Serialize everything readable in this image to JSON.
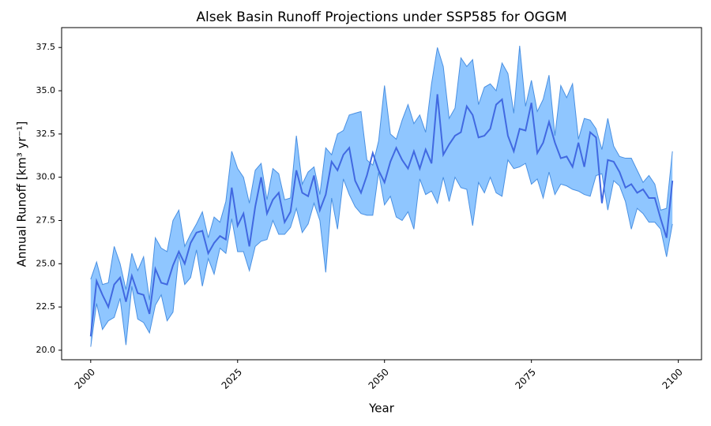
{
  "chart_data": {
    "type": "band-line",
    "title": "Alsek Basin Runoff Projections under SSP585 for OGGM",
    "x_label": "Year",
    "y_label": "Annual Runoff [km³ yr⁻¹]",
    "x": [
      2000,
      2001,
      2002,
      2003,
      2004,
      2005,
      2006,
      2007,
      2008,
      2009,
      2010,
      2011,
      2012,
      2013,
      2014,
      2015,
      2016,
      2017,
      2018,
      2019,
      2020,
      2021,
      2022,
      2023,
      2024,
      2025,
      2026,
      2027,
      2028,
      2029,
      2030,
      2031,
      2032,
      2033,
      2034,
      2035,
      2036,
      2037,
      2038,
      2039,
      2040,
      2041,
      2042,
      2043,
      2044,
      2045,
      2046,
      2047,
      2048,
      2049,
      2050,
      2051,
      2052,
      2053,
      2054,
      2055,
      2056,
      2057,
      2058,
      2059,
      2060,
      2061,
      2062,
      2063,
      2064,
      2065,
      2066,
      2067,
      2068,
      2069,
      2070,
      2071,
      2072,
      2073,
      2074,
      2075,
      2076,
      2077,
      2078,
      2079,
      2080,
      2081,
      2082,
      2083,
      2084,
      2085,
      2086,
      2087,
      2088,
      2089,
      2090,
      2091,
      2092,
      2093,
      2094,
      2095,
      2096,
      2097,
      2098,
      2099
    ],
    "series": [
      {
        "color": "#4169e1",
        "values": [
          20.8,
          24.0,
          23.2,
          22.5,
          23.8,
          24.2,
          22.8,
          24.3,
          23.3,
          23.2,
          22.1,
          24.7,
          23.9,
          23.8,
          24.9,
          25.7,
          25.0,
          26.2,
          26.8,
          26.9,
          25.6,
          26.2,
          26.6,
          26.4,
          29.4,
          27.2,
          27.9,
          26.0,
          28.3,
          30.0,
          27.9,
          28.7,
          29.1,
          27.4,
          28.0,
          30.4,
          29.1,
          28.9,
          30.1,
          28.1,
          29.0,
          30.9,
          30.4,
          31.3,
          31.7,
          29.8,
          29.1,
          30.1,
          31.4,
          30.4,
          29.7,
          30.9,
          31.7,
          31.0,
          30.5,
          31.5,
          30.5,
          31.6,
          30.8,
          34.8,
          31.3,
          31.9,
          32.4,
          32.6,
          34.1,
          33.6,
          32.3,
          32.4,
          32.8,
          34.2,
          34.5,
          32.4,
          31.5,
          32.8,
          32.7,
          34.3,
          31.4,
          32.0,
          33.2,
          32.0,
          31.1,
          31.2,
          30.6,
          32.0,
          30.6,
          32.6,
          32.3,
          28.5,
          31.0,
          30.9,
          30.3,
          29.4,
          29.6,
          29.1,
          29.3,
          28.8,
          28.8,
          27.6,
          26.5,
          29.8
        ]
      }
    ],
    "band": {
      "color": "#8fc6ff",
      "edge_color": "#4a90e2",
      "upper": [
        24.1,
        25.1,
        23.8,
        23.9,
        26.0,
        25.0,
        23.5,
        25.6,
        24.6,
        25.4,
        22.9,
        26.5,
        25.9,
        25.7,
        27.5,
        28.1,
        26.0,
        26.7,
        27.3,
        28.0,
        26.5,
        27.7,
        27.4,
        28.6,
        31.5,
        30.5,
        30.0,
        28.5,
        30.4,
        30.8,
        28.7,
        30.5,
        30.2,
        28.7,
        28.8,
        32.4,
        29.6,
        30.3,
        30.6,
        29.0,
        31.7,
        31.3,
        32.5,
        32.7,
        33.6,
        33.7,
        33.8,
        31.0,
        30.7,
        32.1,
        35.3,
        32.5,
        32.2,
        33.3,
        34.2,
        33.1,
        33.6,
        32.6,
        35.4,
        37.5,
        36.4,
        33.4,
        34.0,
        36.9,
        36.4,
        36.8,
        34.2,
        35.2,
        35.4,
        35.0,
        36.6,
        36.0,
        33.7,
        37.6,
        34.1,
        35.6,
        33.8,
        34.5,
        35.9,
        32.4,
        35.3,
        34.6,
        35.4,
        32.2,
        33.4,
        33.3,
        32.8,
        31.6,
        33.4,
        31.8,
        31.2,
        31.1,
        31.1,
        30.4,
        29.7,
        30.1,
        29.6,
        28.1,
        28.2,
        31.5
      ],
      "lower": [
        20.2,
        22.7,
        21.2,
        21.7,
        21.9,
        23.0,
        20.3,
        23.7,
        21.8,
        21.6,
        21.0,
        22.6,
        23.2,
        21.7,
        22.2,
        25.5,
        23.8,
        24.2,
        25.8,
        23.7,
        25.3,
        24.4,
        25.9,
        25.6,
        27.6,
        25.7,
        25.7,
        24.6,
        26.0,
        26.3,
        26.4,
        27.5,
        26.7,
        26.7,
        27.1,
        28.2,
        26.8,
        27.3,
        28.5,
        27.5,
        24.5,
        28.8,
        27.0,
        29.9,
        29.0,
        28.3,
        27.9,
        27.8,
        27.8,
        30.3,
        28.4,
        28.9,
        27.7,
        27.5,
        28.0,
        27.0,
        29.9,
        29.0,
        29.2,
        28.5,
        30.0,
        28.6,
        30.0,
        29.4,
        29.3,
        27.2,
        29.7,
        29.1,
        30.0,
        29.1,
        28.9,
        31.0,
        30.5,
        30.6,
        30.8,
        29.6,
        29.9,
        28.8,
        30.3,
        29.0,
        29.6,
        29.5,
        29.3,
        29.2,
        29.0,
        28.9,
        30.1,
        30.2,
        28.1,
        29.8,
        29.5,
        28.6,
        27.0,
        28.2,
        27.9,
        27.4,
        27.4,
        27.0,
        25.4,
        27.3
      ]
    },
    "xlim": [
      1995.05,
      2103.95
    ],
    "ylim": [
      19.45,
      38.65
    ],
    "xticks": [
      2000,
      2025,
      2050,
      2075,
      2100
    ],
    "yticks": [
      {
        "value": 20,
        "label": "20.0"
      },
      22.5,
      {
        "value": 25,
        "label": "25.0"
      },
      27.5,
      {
        "value": 30,
        "label": "30.0"
      },
      32.5,
      {
        "value": 35,
        "label": "35.0"
      },
      37.5
    ]
  }
}
